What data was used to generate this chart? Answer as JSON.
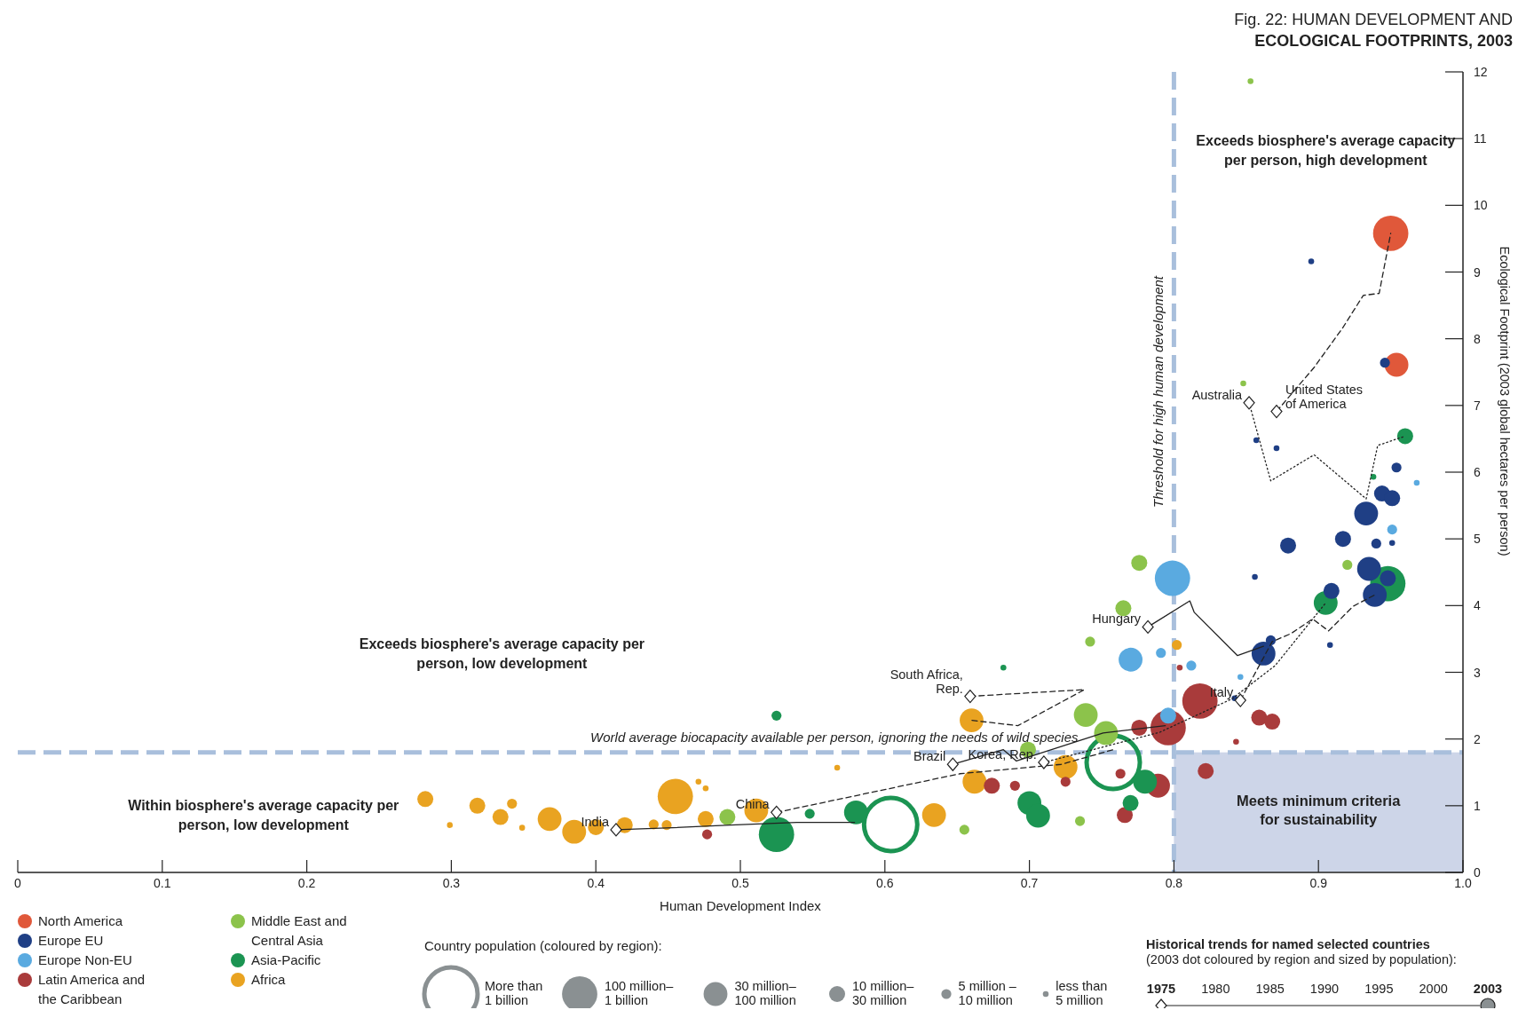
{
  "chart_data": {
    "type": "bubble",
    "title": "Fig. 22: HUMAN DEVELOPMENT AND ECOLOGICAL FOOTPRINTS, 2003",
    "xlabel": "Human Development Index",
    "ylabel": "Ecological Footprint (2003 global hectares per person)",
    "xlim": [
      0,
      1
    ],
    "xticks": [
      0,
      0.1,
      0.2,
      0.3,
      0.4,
      0.5,
      0.6,
      0.7,
      0.8,
      0.9,
      {
        "value": 1,
        "label": "1.0"
      }
    ],
    "ylim": [
      0,
      12
    ],
    "yticks": [
      0,
      1,
      2,
      3,
      4,
      5,
      6,
      7,
      8,
      9,
      10,
      11,
      12
    ],
    "legend": "bottom",
    "legend_title": "Country population (coloured by region):",
    "size_legend": [
      {
        "value": 1,
        "label": "More than 1 billion"
      },
      {
        "value": 0.44,
        "label": "100 million– 1 billion"
      },
      {
        "value": 0.2,
        "label": "30 million– 100 million"
      },
      {
        "value": 0.09,
        "label": "10 million– 30 million"
      },
      {
        "value": 0.035,
        "label": "5 million – 10 million"
      },
      {
        "value": 0.012,
        "label": "less than 5 million"
      }
    ],
    "ref_lines": [
      {
        "axis": "x",
        "value": 0.8,
        "label": "Threshold for high human development",
        "color": "#a9bfdc",
        "line_style": "dashed"
      },
      {
        "axis": "y",
        "value": 1.8,
        "label": "World average biocapacity available per person, ignoring the needs of wild species",
        "color": "#a9bfdc",
        "line_style": "dashed"
      }
    ],
    "bands": [
      {
        "axis": "x",
        "from": 0.8,
        "to": 1,
        "label": "Meets minimum criteria for sustainability",
        "color": "#cdd5e8"
      }
    ],
    "annotations": [
      "Exceeds biosphere's average capacity per person, high development",
      "Exceeds biosphere's average capacity per person, low development",
      "Within biosphere's average capacity per person, low development",
      "Historical trends for named selected countries (2003 dot coloured by region and sized by population):",
      "1975",
      "1980",
      "1985",
      "1990",
      "1995",
      "2000",
      "2003"
    ],
    "series": [
      {
        "name": "North America",
        "color": "#e0583a",
        "x": [
          0.95,
          0.954
        ],
        "values": [
          9.58,
          7.61
        ],
        "sizes": [
          0.44,
          0.2
        ]
      },
      {
        "name": "Europe EU",
        "color": "#1f3f85",
        "x": [
          0.895,
          0.946,
          0.857,
          0.871,
          0.954,
          0.944,
          0.951,
          0.933,
          0.917,
          0.879,
          0.94,
          0.951,
          0.935,
          0.948,
          0.939,
          0.909,
          0.856,
          0.862,
          0.867,
          0.908,
          0.842
        ],
        "values": [
          9.16,
          7.64,
          6.48,
          6.36,
          6.07,
          5.68,
          5.61,
          5.38,
          5.0,
          4.9,
          4.93,
          4.94,
          4.55,
          4.41,
          4.16,
          4.22,
          4.43,
          3.28,
          3.48,
          3.41,
          2.61
        ],
        "sizes": [
          0.012,
          0.035,
          0.012,
          0.012,
          0.035,
          0.09,
          0.09,
          0.2,
          0.09,
          0.09,
          0.035,
          0.012,
          0.2,
          0.09,
          0.2,
          0.09,
          0.012,
          0.2,
          0.035,
          0.012,
          0.012
        ]
      },
      {
        "name": "Europe Non-EU",
        "color": "#5aaae0",
        "x": [
          0.968,
          0.951,
          0.799,
          0.77,
          0.791,
          0.812,
          0.846,
          0.796
        ],
        "values": [
          5.84,
          5.14,
          4.41,
          3.19,
          3.29,
          3.1,
          2.93,
          2.35
        ],
        "sizes": [
          0.012,
          0.035,
          0.44,
          0.2,
          0.035,
          0.035,
          0.012,
          0.09
        ]
      },
      {
        "name": "Latin America and the Caribbean",
        "color": "#a93b3b",
        "x": [
          0.796,
          0.818,
          0.859,
          0.868,
          0.776,
          0.804,
          0.843,
          0.822,
          0.789,
          0.763,
          0.766,
          0.725,
          0.69,
          0.674,
          0.477
        ],
        "values": [
          2.17,
          2.57,
          2.32,
          2.26,
          2.17,
          3.07,
          1.96,
          1.52,
          1.3,
          1.48,
          0.86,
          1.36,
          1.3,
          1.3,
          0.57
        ],
        "sizes": [
          0.44,
          0.44,
          0.09,
          0.09,
          0.09,
          0.012,
          0.012,
          0.09,
          0.2,
          0.035,
          0.09,
          0.035,
          0.035,
          0.09,
          0.035
        ]
      },
      {
        "name": "Middle East and Central Asia",
        "color": "#8cc34b",
        "x": [
          0.853,
          0.848,
          0.92,
          0.776,
          0.765,
          0.742,
          0.739,
          0.753,
          0.699,
          0.735,
          0.655,
          0.491
        ],
        "values": [
          11.86,
          7.33,
          4.61,
          4.64,
          3.96,
          3.46,
          2.36,
          2.09,
          1.84,
          0.77,
          0.64,
          0.83
        ],
        "sizes": [
          0.012,
          0.012,
          0.035,
          0.09,
          0.09,
          0.035,
          0.2,
          0.2,
          0.09,
          0.035,
          0.035,
          0.09
        ]
      },
      {
        "name": "Asia-Pacific",
        "color": "#1b9452",
        "x": [
          0.96,
          0.938,
          0.948,
          0.905,
          0.682,
          0.525,
          0.758,
          0.604,
          0.525,
          0.7,
          0.706,
          0.77,
          0.78,
          0.58,
          0.548
        ],
        "values": [
          6.54,
          5.93,
          4.33,
          4.04,
          3.07,
          2.35,
          1.65,
          0.72,
          0.57,
          1.04,
          0.85,
          1.04,
          1.36,
          0.9,
          0.88
        ],
        "sizes": [
          0.09,
          0.012,
          0.44,
          0.2,
          0.012,
          0.035,
          1,
          1,
          0.44,
          0.2,
          0.2,
          0.09,
          0.2,
          0.2,
          0.035
        ]
      },
      {
        "name": "Africa",
        "color": "#e9a321",
        "x": [
          0.66,
          0.802,
          0.725,
          0.662,
          0.567,
          0.634,
          0.455,
          0.471,
          0.476,
          0.476,
          0.511,
          0.282,
          0.299,
          0.318,
          0.334,
          0.342,
          0.349,
          0.368,
          0.385,
          0.4,
          0.42,
          0.44,
          0.449
        ],
        "values": [
          2.28,
          3.41,
          1.58,
          1.36,
          1.57,
          0.86,
          1.14,
          1.36,
          1.26,
          0.8,
          0.93,
          1.1,
          0.71,
          1.0,
          0.83,
          1.03,
          0.67,
          0.8,
          0.61,
          0.68,
          0.71,
          0.72,
          0.71
        ],
        "sizes": [
          0.2,
          0.035,
          0.2,
          0.2,
          0.012,
          0.2,
          0.44,
          0.012,
          0.012,
          0.09,
          0.2,
          0.09,
          0.012,
          0.09,
          0.09,
          0.035,
          0.012,
          0.2,
          0.2,
          0.09,
          0.09,
          0.035,
          0.035
        ]
      },
      {
        "name": "India",
        "type": "line",
        "color": "#222222",
        "line_style": "solid",
        "x": [
          0.414,
          0.453,
          0.493,
          0.539,
          0.579
        ],
        "values": [
          0.64,
          0.67,
          0.71,
          0.75,
          0.75
        ]
      },
      {
        "name": "China",
        "type": "line",
        "color": "#222222",
        "line_style": "dashed",
        "x": [
          0.525,
          0.652,
          0.722,
          0.758
        ],
        "values": [
          0.9,
          1.48,
          1.62,
          1.84
        ]
      },
      {
        "name": "Brazil",
        "type": "line",
        "color": "#222222",
        "line_style": "solid",
        "x": [
          0.647,
          0.682,
          0.691,
          0.751,
          0.794
        ],
        "values": [
          1.62,
          1.84,
          1.67,
          2.09,
          2.2
        ]
      },
      {
        "name": "South Africa, Rep.",
        "type": "line",
        "color": "#222222",
        "line_style": "dashed",
        "x": [
          0.659,
          0.738,
          0.692,
          0.66
        ],
        "values": [
          2.64,
          2.74,
          2.2,
          2.28
        ]
      },
      {
        "name": "Korea, Rep.",
        "type": "line",
        "color": "#222222",
        "line_style": "dotted",
        "x": [
          0.71,
          0.79,
          0.84,
          0.87,
          0.905
        ],
        "values": [
          1.65,
          2.1,
          2.6,
          3.1,
          4.04
        ]
      },
      {
        "name": "Hungary",
        "type": "line",
        "color": "#222222",
        "line_style": "solid",
        "x": [
          0.782,
          0.811,
          0.814,
          0.844,
          0.862
        ],
        "values": [
          3.68,
          4.07,
          3.9,
          3.25,
          3.39
        ]
      },
      {
        "name": "Australia",
        "type": "line",
        "color": "#222222",
        "line_style": "dotted",
        "x": [
          0.852,
          0.867,
          0.897,
          0.933,
          0.941,
          0.96
        ],
        "values": [
          7.04,
          5.87,
          6.26,
          5.6,
          6.4,
          6.54
        ]
      },
      {
        "name": "United States of America",
        "type": "line",
        "color": "#222222",
        "line_style": "dashed",
        "x": [
          0.871,
          0.897,
          0.917,
          0.931,
          0.942,
          0.95
        ],
        "values": [
          6.91,
          7.57,
          8.17,
          8.65,
          8.68,
          9.58
        ]
      },
      {
        "name": "Italy",
        "type": "line",
        "color": "#222222",
        "line_style": "dashed",
        "x": [
          0.846,
          0.868,
          0.881,
          0.896,
          0.907,
          0.924,
          0.939
        ],
        "values": [
          2.58,
          3.46,
          3.58,
          3.8,
          3.62,
          3.99,
          4.16
        ]
      }
    ]
  }
}
